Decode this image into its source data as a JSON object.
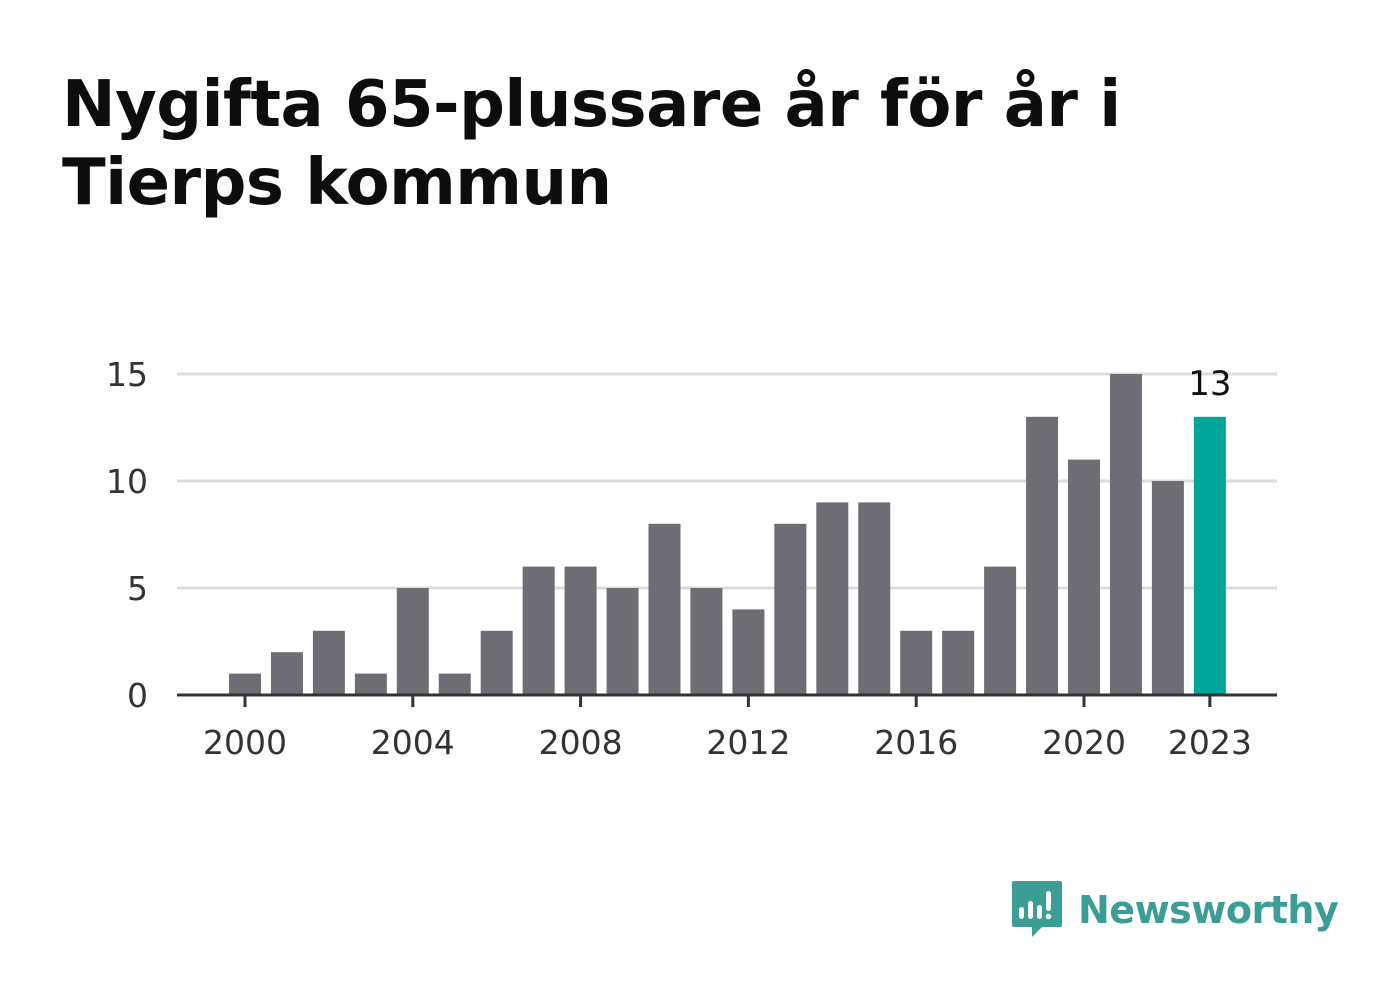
{
  "title": "Nygifta 65-plussare år för år i Tierps kommun",
  "brand": {
    "name": "Newsworthy",
    "icon": "newsworthy-chat-bars-icon",
    "color": "#3a9d96"
  },
  "colors": {
    "bar": "#6e6d73",
    "highlight": "#00a59a",
    "grid": "#dcdcdc",
    "axis": "#333333"
  },
  "chart_data": {
    "type": "bar",
    "title": "Nygifta 65-plussare år för år i Tierps kommun",
    "xlabel": "",
    "ylabel": "",
    "categories": [
      2000,
      2001,
      2002,
      2003,
      2004,
      2005,
      2006,
      2007,
      2008,
      2009,
      2010,
      2011,
      2012,
      2013,
      2014,
      2015,
      2016,
      2017,
      2018,
      2019,
      2020,
      2021,
      2022,
      2023
    ],
    "values": [
      1,
      2,
      3,
      1,
      5,
      1,
      3,
      6,
      6,
      5,
      8,
      5,
      4,
      8,
      9,
      9,
      3,
      3,
      6,
      13,
      11,
      15,
      10,
      13
    ],
    "highlight": {
      "category": 2023,
      "label": "13"
    },
    "ylim": [
      0,
      15
    ],
    "yticks": [
      0,
      5,
      10,
      15
    ],
    "xticks": [
      2000,
      2004,
      2008,
      2012,
      2016,
      2020,
      2023
    ],
    "grid": true,
    "legend": "none"
  }
}
